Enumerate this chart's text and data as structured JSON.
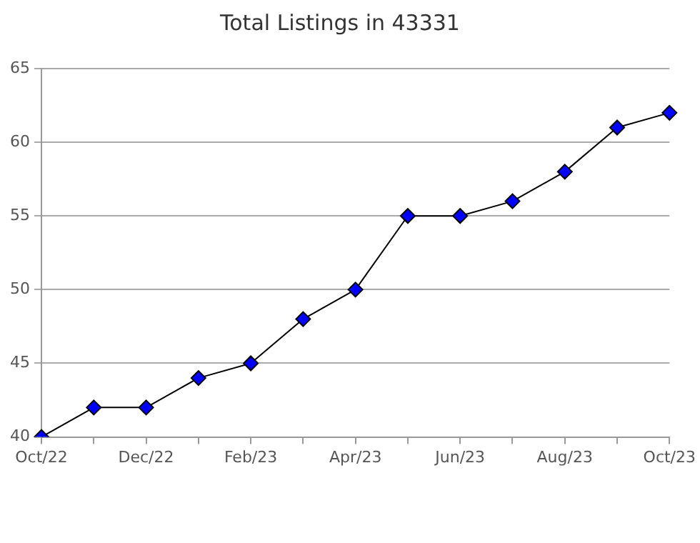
{
  "chart_data": {
    "type": "line",
    "title": "Total Listings in 43331",
    "categories": [
      "Oct/22",
      null,
      "Dec/22",
      null,
      "Feb/23",
      null,
      "Apr/23",
      null,
      "Jun/23",
      null,
      "Aug/23",
      null,
      "Oct/23"
    ],
    "series": [
      {
        "color": "#0000ff",
        "values": [
          40,
          42,
          42,
          44,
          45,
          48,
          50,
          55,
          55,
          56,
          58,
          61,
          62
        ]
      }
    ],
    "ylim": [
      40,
      65
    ],
    "yticks": [
      40,
      45,
      50,
      55,
      60,
      65
    ],
    "grid": "y",
    "marker": "diamond",
    "line_style": "solid",
    "legend": false
  }
}
